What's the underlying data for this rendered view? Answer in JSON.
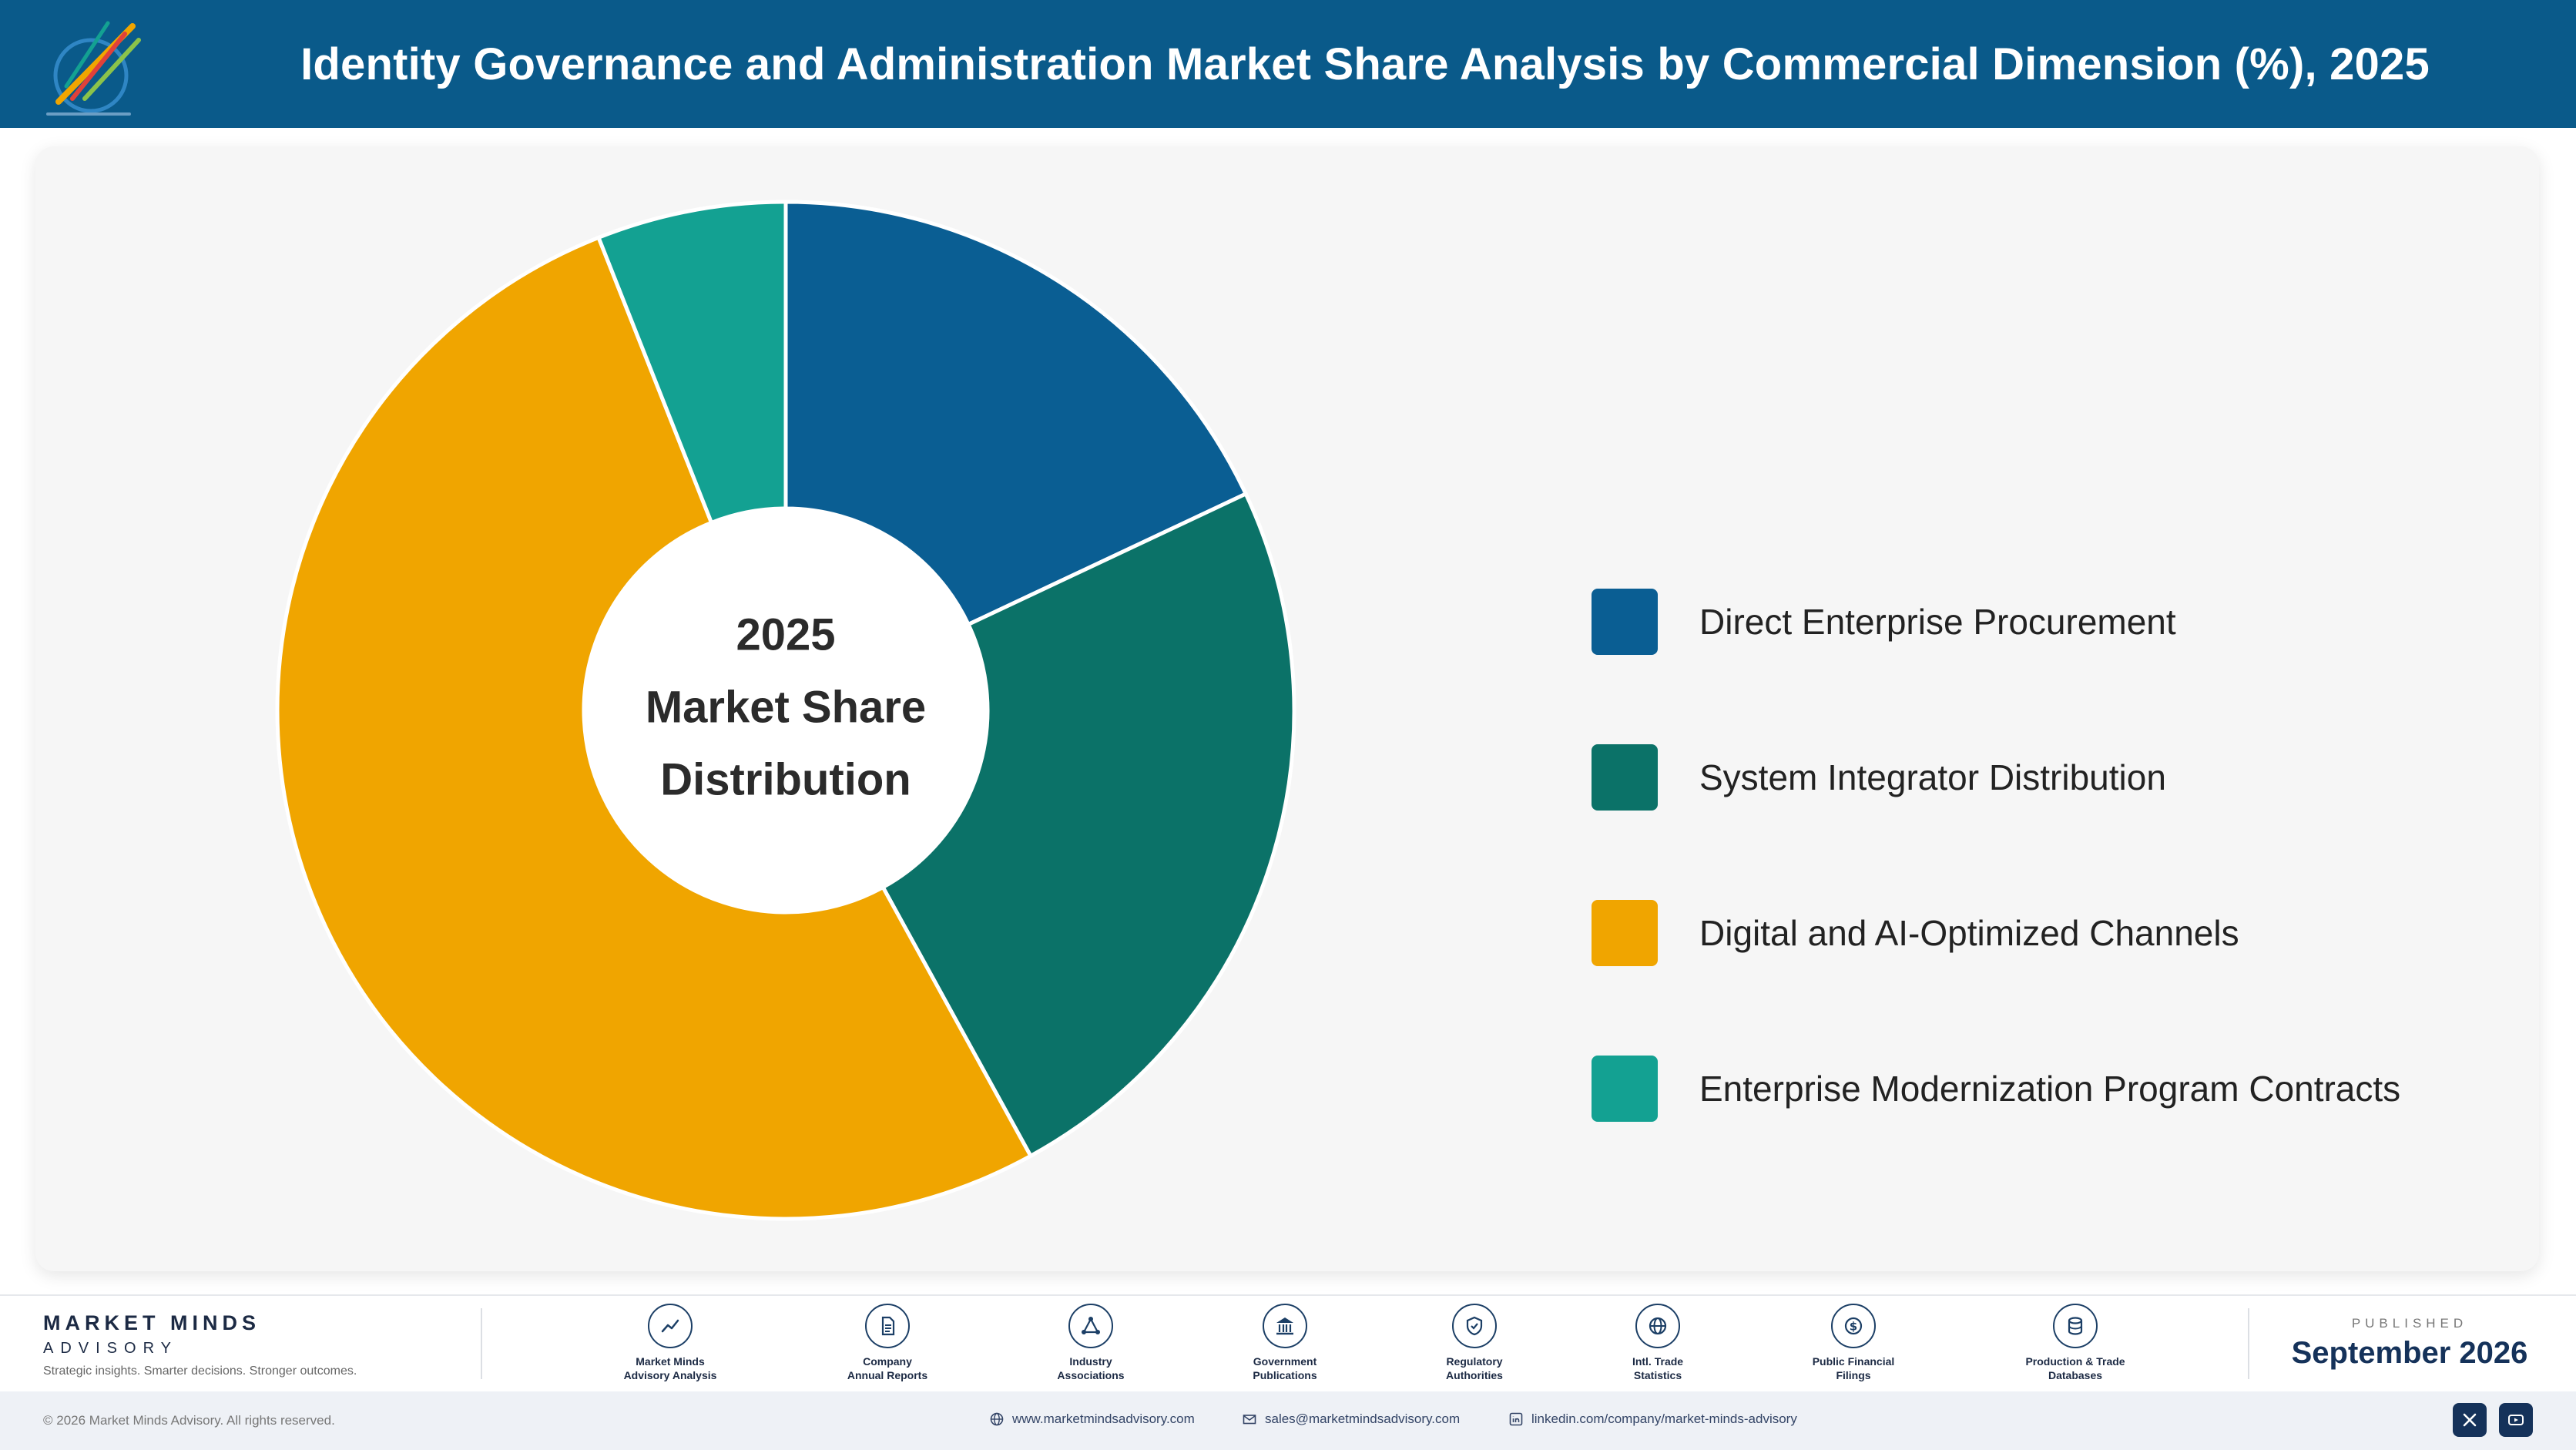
{
  "header": {
    "title": "Identity Governance and Administration Market Share Analysis by Commercial Dimension (%), 2025",
    "logo_icon": "market-minds-logo-icon"
  },
  "chart_data": {
    "type": "pie",
    "donut": true,
    "center_text": [
      "2025",
      "Market Share",
      "Distribution"
    ],
    "categories": [
      "Direct Enterprise Procurement",
      "System Integrator Distribution",
      "Digital and AI-Optimized Channels",
      "Enterprise Modernization Program Contracts"
    ],
    "values": [
      18,
      24,
      52,
      6
    ],
    "colors": [
      "#0a5e93",
      "#0b7268",
      "#f0a500",
      "#13a192"
    ],
    "legend_position": "right",
    "data_labels": false
  },
  "footer": {
    "brand_name": "MARKET MINDS",
    "brand_sub": "ADVISORY",
    "tagline": "Strategic insights. Smarter decisions. Stronger outcomes.",
    "sources": [
      {
        "icon": "line-chart-icon",
        "line1": "Market Minds",
        "line2": "Advisory Analysis"
      },
      {
        "icon": "document-icon",
        "line1": "Company",
        "line2": "Annual Reports"
      },
      {
        "icon": "network-icon",
        "line1": "Industry",
        "line2": "Associations"
      },
      {
        "icon": "government-building-icon",
        "line1": "Government",
        "line2": "Publications"
      },
      {
        "icon": "shield-check-icon",
        "line1": "Regulatory",
        "line2": "Authorities"
      },
      {
        "icon": "globe-icon",
        "line1": "Intl. Trade",
        "line2": "Statistics"
      },
      {
        "icon": "dollar-coin-icon",
        "line1": "Public Financial",
        "line2": "Filings"
      },
      {
        "icon": "database-icon",
        "line1": "Production & Trade",
        "line2": "Databases"
      }
    ],
    "published_label": "PUBLISHED",
    "published_date": "September 2026",
    "copyright": "© 2026 Market Minds Advisory. All rights reserved.",
    "website": "www.marketmindsadvisory.com",
    "email": "sales@marketmindsadvisory.com",
    "linkedin": "linkedin.com/company/market-minds-advisory",
    "social_icons": [
      "x-icon",
      "youtube-icon"
    ]
  },
  "colors": {
    "header_bg": "#0a5a8a",
    "card_bg": "#f6f6f6",
    "brand_navy": "#15325a"
  }
}
